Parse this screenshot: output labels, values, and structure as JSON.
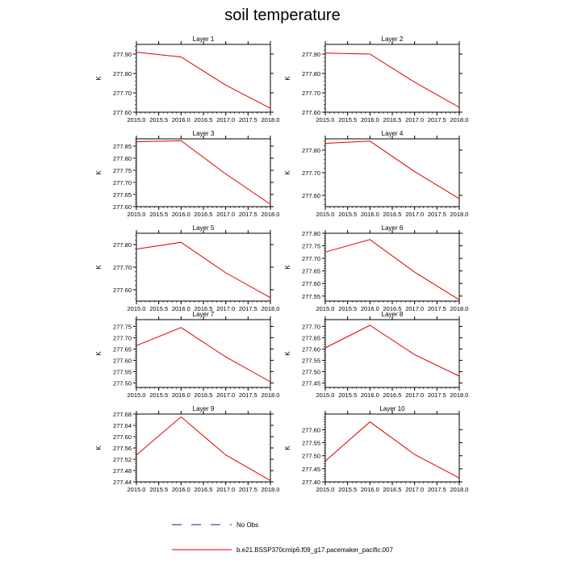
{
  "title": "soil temperature",
  "colors": {
    "model_line": "#e00000",
    "obs_line": "#1a1a8c",
    "axis": "#000000"
  },
  "legend": {
    "obs_label": "No Obs",
    "model_label": "b.e21.BSSP370cmip6.f09_g17.pacemaker_pacific.007"
  },
  "chart_data": [
    {
      "type": "line",
      "title": "Layer 1",
      "ylabel": "K",
      "x": [
        2015.0,
        2016.0,
        2017.0,
        2018.0
      ],
      "y": [
        277.91,
        277.885,
        277.74,
        277.62
      ],
      "xlim": [
        2015.0,
        2018.0
      ],
      "ylim": [
        277.6,
        277.95
      ],
      "xticks": [
        "2015.0",
        "2015.5",
        "2016.0",
        "2016.5",
        "2017.0",
        "2017.5",
        "2018.0"
      ],
      "yticks": [
        "277.60",
        "277.70",
        "277.80",
        "277.90"
      ]
    },
    {
      "type": "line",
      "title": "Layer 2",
      "ylabel": "K",
      "x": [
        2015.0,
        2016.0,
        2017.0,
        2018.0
      ],
      "y": [
        277.905,
        277.9,
        277.755,
        277.625
      ],
      "xlim": [
        2015.0,
        2018.0
      ],
      "ylim": [
        277.6,
        277.95
      ],
      "xticks": [
        "2015.0",
        "2015.5",
        "2016.0",
        "2016.5",
        "2017.0",
        "2017.5",
        "2018.0"
      ],
      "yticks": [
        "277.60",
        "277.70",
        "277.80",
        "277.90"
      ]
    },
    {
      "type": "line",
      "title": "Layer 3",
      "ylabel": "K",
      "x": [
        2015.0,
        2016.0,
        2017.0,
        2018.0
      ],
      "y": [
        277.868,
        277.872,
        277.735,
        277.61
      ],
      "xlim": [
        2015.0,
        2018.0
      ],
      "ylim": [
        277.6,
        277.88
      ],
      "xticks": [
        "2015.0",
        "2015.5",
        "2016.0",
        "2016.5",
        "2017.0",
        "2017.5",
        "2018.0"
      ],
      "yticks": [
        "277.60",
        "277.65",
        "277.70",
        "277.75",
        "277.80",
        "277.85"
      ]
    },
    {
      "type": "line",
      "title": "Layer 4",
      "ylabel": "K",
      "x": [
        2015.0,
        2016.0,
        2017.0,
        2018.0
      ],
      "y": [
        277.83,
        277.84,
        277.705,
        277.585
      ],
      "xlim": [
        2015.0,
        2018.0
      ],
      "ylim": [
        277.55,
        277.85
      ],
      "xticks": [
        "2015.0",
        "2015.5",
        "2016.0",
        "2016.5",
        "2017.0",
        "2017.5",
        "2018.0"
      ],
      "yticks": [
        "277.60",
        "277.70",
        "277.80"
      ]
    },
    {
      "type": "line",
      "title": "Layer 5",
      "ylabel": "K",
      "x": [
        2015.0,
        2016.0,
        2017.0,
        2018.0
      ],
      "y": [
        277.78,
        277.81,
        277.675,
        277.565
      ],
      "xlim": [
        2015.0,
        2018.0
      ],
      "ylim": [
        277.55,
        277.85
      ],
      "xticks": [
        "2015.0",
        "2015.5",
        "2016.0",
        "2016.5",
        "2017.0",
        "2017.5",
        "2018.0"
      ],
      "yticks": [
        "277.60",
        "277.70",
        "277.80"
      ]
    },
    {
      "type": "line",
      "title": "Layer 6",
      "ylabel": "K",
      "x": [
        2015.0,
        2016.0,
        2017.0,
        2018.0
      ],
      "y": [
        277.725,
        277.775,
        277.645,
        277.535
      ],
      "xlim": [
        2015.0,
        2018.0
      ],
      "ylim": [
        277.53,
        277.8
      ],
      "xticks": [
        "2015.0",
        "2015.5",
        "2016.0",
        "2016.5",
        "2017.0",
        "2017.5",
        "2018.0"
      ],
      "yticks": [
        "277.55",
        "277.60",
        "277.65",
        "277.70",
        "277.75",
        "277.80"
      ]
    },
    {
      "type": "line",
      "title": "Layer 7",
      "ylabel": "K",
      "x": [
        2015.0,
        2016.0,
        2017.0,
        2018.0
      ],
      "y": [
        277.665,
        277.745,
        277.615,
        277.505
      ],
      "xlim": [
        2015.0,
        2018.0
      ],
      "ylim": [
        277.48,
        277.78
      ],
      "xticks": [
        "2015.0",
        "2015.5",
        "2016.0",
        "2016.5",
        "2017.0",
        "2017.5",
        "2018.0"
      ],
      "yticks": [
        "277.50",
        "277.55",
        "277.60",
        "277.65",
        "277.70",
        "277.75"
      ]
    },
    {
      "type": "line",
      "title": "Layer 8",
      "ylabel": "K",
      "x": [
        2015.0,
        2016.0,
        2017.0,
        2018.0
      ],
      "y": [
        277.605,
        277.705,
        277.575,
        277.48
      ],
      "xlim": [
        2015.0,
        2018.0
      ],
      "ylim": [
        277.43,
        277.73
      ],
      "xticks": [
        "2015.0",
        "2015.5",
        "2016.0",
        "2016.5",
        "2017.0",
        "2017.5",
        "2018.0"
      ],
      "yticks": [
        "277.45",
        "277.50",
        "277.55",
        "277.60",
        "277.65",
        "277.70"
      ]
    },
    {
      "type": "line",
      "title": "Layer 9",
      "ylabel": "K",
      "x": [
        2015.0,
        2016.0,
        2017.0,
        2018.0
      ],
      "y": [
        277.535,
        277.67,
        277.535,
        277.445
      ],
      "xlim": [
        2015.0,
        2018.0
      ],
      "ylim": [
        277.44,
        277.68
      ],
      "xticks": [
        "2015.0",
        "2015.5",
        "2016.0",
        "2016.5",
        "2017.0",
        "2017.5",
        "2018.0"
      ],
      "yticks": [
        "277.44",
        "277.48",
        "277.52",
        "277.56",
        "277.60",
        "277.64",
        "277.68"
      ]
    },
    {
      "type": "line",
      "title": "Layer 10",
      "ylabel": "K",
      "x": [
        2015.0,
        2016.0,
        2017.0,
        2018.0
      ],
      "y": [
        277.48,
        277.63,
        277.505,
        277.415
      ],
      "xlim": [
        2015.0,
        2018.0
      ],
      "ylim": [
        277.4,
        277.66
      ],
      "xticks": [
        "2015.0",
        "2015.5",
        "2016.0",
        "2016.5",
        "2017.0",
        "2017.5",
        "2018.0"
      ],
      "yticks": [
        "277.40",
        "277.45",
        "277.50",
        "277.55",
        "277.60"
      ]
    }
  ]
}
